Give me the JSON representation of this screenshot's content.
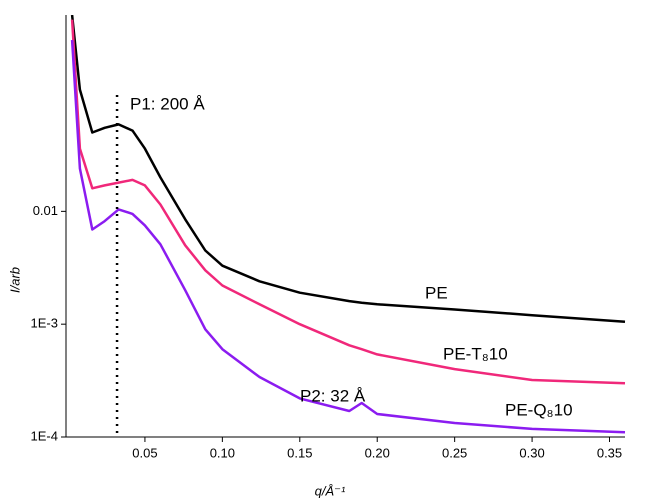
{
  "chart_data": {
    "type": "line",
    "x_label": "q/Å⁻¹",
    "y_label": "I/arb",
    "log_y": true,
    "xlim": [
      0,
      0.36
    ],
    "ylim": [
      0.0001,
      0.55
    ],
    "xticks": [
      0.05,
      {
        "value": 0.1,
        "label": "0.10"
      },
      0.15,
      {
        "value": 0.2,
        "label": "0.20"
      },
      0.25,
      {
        "value": 0.3,
        "label": "0.30"
      },
      0.35
    ],
    "yticks": [
      {
        "value": 0.0001,
        "label": "1E-4"
      },
      {
        "value": 0.001,
        "label": "1E-3"
      },
      0.01
    ],
    "x": [
      0.003,
      0.008,
      0.016,
      0.024,
      0.033,
      0.042,
      0.05,
      0.06,
      0.076,
      0.089,
      0.1,
      0.124,
      0.15,
      0.182,
      0.19,
      0.2,
      0.25,
      0.3,
      0.36
    ],
    "series": [
      {
        "name": "PE",
        "color": "#000000",
        "values": [
          0.55,
          0.12,
          0.05,
          0.055,
          0.059,
          0.052,
          0.036,
          0.02,
          0.0085,
          0.0045,
          0.0033,
          0.0024,
          0.0019,
          0.0016,
          0.00155,
          0.0015,
          0.00135,
          0.0012,
          0.00105
        ]
      },
      {
        "name": "PE-T₈10",
        "color": "#f0287a",
        "values": [
          0.5,
          0.036,
          0.016,
          0.017,
          0.018,
          0.019,
          0.017,
          0.0115,
          0.005,
          0.003,
          0.0022,
          0.0015,
          0.001,
          0.00065,
          0.0006,
          0.00054,
          0.0004,
          0.00032,
          0.0003
        ]
      },
      {
        "name": "PE-Q₈10",
        "color": "#8b1cf0",
        "values": [
          0.33,
          0.024,
          0.0069,
          0.0082,
          0.0104,
          0.0095,
          0.0075,
          0.0051,
          0.002,
          0.0009,
          0.0006,
          0.00034,
          0.00022,
          0.00017,
          0.0002,
          0.00016,
          0.000133,
          0.000118,
          0.00011
        ]
      }
    ],
    "annotations": [
      {
        "text": "P1: 200 Å",
        "x": 0.032,
        "line": "dotted",
        "color": "#000000"
      },
      {
        "text": "P2: 32 Å",
        "x": 0.19,
        "color": "#8b1cf0"
      }
    ]
  }
}
